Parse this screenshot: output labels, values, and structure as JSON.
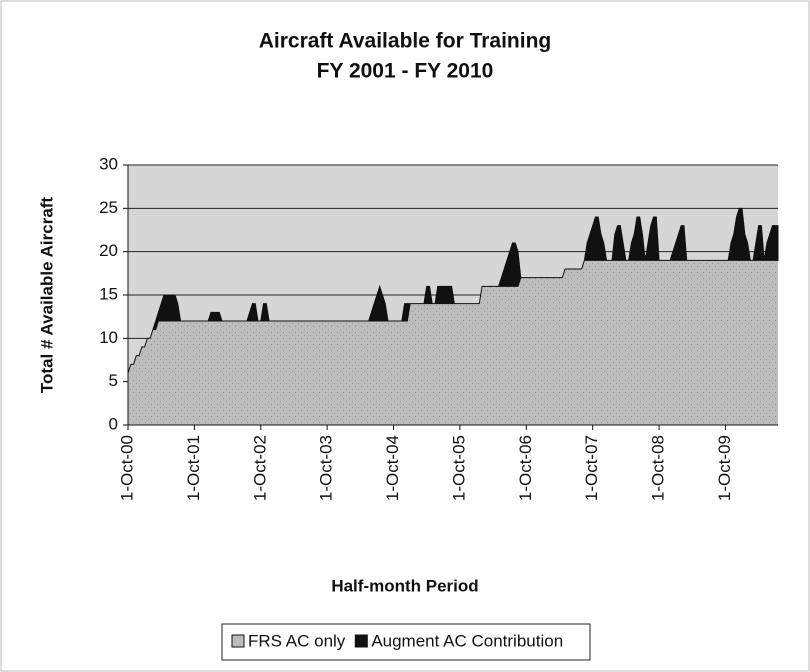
{
  "chart_data": {
    "type": "stacked_area",
    "title": "Aircraft Available for Training",
    "subtitle": "FY 2001 - FY 2010",
    "x_label": "Half-month Period",
    "y_label": "Total # Available Aircraft",
    "categories": [
      "1-Oct-00",
      null,
      null,
      null,
      null,
      null,
      null,
      null,
      null,
      null,
      null,
      null,
      null,
      null,
      null,
      null,
      null,
      null,
      null,
      null,
      null,
      null,
      null,
      null,
      "1-Oct-01",
      null,
      null,
      null,
      null,
      null,
      null,
      null,
      null,
      null,
      null,
      null,
      null,
      null,
      null,
      null,
      null,
      null,
      null,
      null,
      null,
      null,
      null,
      null,
      "1-Oct-02",
      null,
      null,
      null,
      null,
      null,
      null,
      null,
      null,
      null,
      null,
      null,
      null,
      null,
      null,
      null,
      null,
      null,
      null,
      null,
      null,
      null,
      null,
      null,
      "1-Oct-03",
      null,
      null,
      null,
      null,
      null,
      null,
      null,
      null,
      null,
      null,
      null,
      null,
      null,
      null,
      null,
      null,
      null,
      null,
      null,
      null,
      null,
      null,
      null,
      "1-Oct-04",
      null,
      null,
      null,
      null,
      null,
      null,
      null,
      null,
      null,
      null,
      null,
      null,
      null,
      null,
      null,
      null,
      null,
      null,
      null,
      null,
      null,
      null,
      null,
      "1-Oct-05",
      null,
      null,
      null,
      null,
      null,
      null,
      null,
      null,
      null,
      null,
      null,
      null,
      null,
      null,
      null,
      null,
      null,
      null,
      null,
      null,
      null,
      null,
      null,
      "1-Oct-06",
      null,
      null,
      null,
      null,
      null,
      null,
      null,
      null,
      null,
      null,
      null,
      null,
      null,
      null,
      null,
      null,
      null,
      null,
      null,
      null,
      null,
      null,
      null,
      "1-Oct-07",
      null,
      null,
      null,
      null,
      null,
      null,
      null,
      null,
      null,
      null,
      null,
      null,
      null,
      null,
      null,
      null,
      null,
      null,
      null,
      null,
      null,
      null,
      null,
      "1-Oct-08",
      null,
      null,
      null,
      null,
      null,
      null,
      null,
      null,
      null,
      null,
      null,
      null,
      null,
      null,
      null,
      null,
      null,
      null,
      null,
      null,
      null,
      null,
      null,
      "1-Oct-09",
      null,
      null,
      null,
      null,
      null,
      null,
      null,
      null,
      null,
      null,
      null,
      null,
      null,
      null,
      null,
      null,
      null,
      null,
      null
    ],
    "series": [
      {
        "name": "FRS AC only",
        "color": "#b8b8b8",
        "values": [
          6,
          7,
          7,
          8,
          8,
          9,
          9,
          10,
          10,
          11,
          11,
          12,
          12,
          12,
          12,
          12,
          12,
          12,
          12,
          12,
          12,
          12,
          12,
          12,
          12,
          12,
          12,
          12,
          12,
          12,
          12,
          12,
          12,
          12,
          12,
          12,
          12,
          12,
          12,
          12,
          12,
          12,
          12,
          12,
          12,
          12,
          12,
          12,
          12,
          12,
          12,
          12,
          12,
          12,
          12,
          12,
          12,
          12,
          12,
          12,
          12,
          12,
          12,
          12,
          12,
          12,
          12,
          12,
          12,
          12,
          12,
          12,
          12,
          12,
          12,
          12,
          12,
          12,
          12,
          12,
          12,
          12,
          12,
          12,
          12,
          12,
          12,
          12,
          12,
          12,
          12,
          12,
          12,
          12,
          12,
          12,
          12,
          12,
          12,
          12,
          12,
          12,
          14,
          14,
          14,
          14,
          14,
          14,
          14,
          14,
          14,
          14,
          14,
          14,
          14,
          14,
          14,
          14,
          14,
          14,
          14,
          14,
          14,
          14,
          14,
          14,
          14,
          14,
          16,
          16,
          16,
          16,
          16,
          16,
          16,
          16,
          16,
          16,
          16,
          16,
          16,
          16,
          17,
          17,
          17,
          17,
          17,
          17,
          17,
          17,
          17,
          17,
          17,
          17,
          17,
          17,
          17,
          17,
          18,
          18,
          18,
          18,
          18,
          18,
          18,
          19,
          19,
          19,
          19,
          19,
          19,
          19,
          19,
          19,
          19,
          19,
          19,
          19,
          19,
          19,
          19,
          19,
          19,
          19,
          19,
          19,
          19,
          19,
          19,
          19,
          19,
          19,
          19,
          19,
          19,
          19,
          19,
          19,
          19,
          19,
          19,
          19,
          19,
          19,
          19,
          19,
          19,
          19,
          19,
          19,
          19,
          19,
          19,
          19,
          19,
          19,
          19,
          19,
          19,
          19,
          19,
          19,
          19,
          19,
          19,
          19,
          19,
          19,
          19,
          19,
          19,
          19,
          19,
          19,
          19,
          19
        ]
      },
      {
        "name": "Augment AC Contribution",
        "color": "#111111",
        "values": [
          0,
          0,
          0,
          0,
          0,
          0,
          0,
          0,
          0,
          0,
          1,
          1,
          2,
          3,
          3,
          3,
          3,
          3,
          2,
          0,
          0,
          0,
          0,
          0,
          0,
          0,
          0,
          0,
          0,
          0,
          1,
          1,
          1,
          1,
          0,
          0,
          0,
          0,
          0,
          0,
          0,
          0,
          0,
          0,
          1,
          2,
          2,
          0,
          0,
          2,
          2,
          0,
          0,
          0,
          0,
          0,
          0,
          0,
          0,
          0,
          0,
          0,
          0,
          0,
          0,
          0,
          0,
          0,
          0,
          0,
          0,
          0,
          0,
          0,
          0,
          0,
          0,
          0,
          0,
          0,
          0,
          0,
          0,
          0,
          0,
          0,
          0,
          0,
          1,
          2,
          3,
          4,
          3,
          2,
          0,
          0,
          0,
          0,
          0,
          0,
          2,
          2,
          0,
          0,
          0,
          0,
          0,
          0,
          2,
          2,
          0,
          0,
          2,
          2,
          2,
          2,
          2,
          2,
          0,
          0,
          0,
          0,
          0,
          0,
          0,
          0,
          0,
          0,
          0,
          0,
          0,
          0,
          0,
          0,
          0,
          1,
          2,
          3,
          4,
          5,
          5,
          4,
          0,
          0,
          0,
          0,
          0,
          0,
          0,
          0,
          0,
          0,
          0,
          0,
          0,
          0,
          0,
          0,
          0,
          0,
          0,
          0,
          0,
          0,
          0,
          0,
          2,
          3,
          4,
          5,
          5,
          3,
          2,
          0,
          0,
          0,
          3,
          4,
          4,
          2,
          0,
          0,
          2,
          3,
          5,
          5,
          3,
          0,
          2,
          4,
          5,
          5,
          0,
          0,
          0,
          0,
          0,
          1,
          2,
          3,
          4,
          4,
          0,
          0,
          0,
          0,
          0,
          0,
          0,
          0,
          0,
          0,
          0,
          0,
          0,
          0,
          0,
          0,
          2,
          3,
          5,
          6,
          6,
          3,
          2,
          0,
          0,
          2,
          4,
          4,
          0,
          2,
          3,
          4,
          4,
          4
        ]
      }
    ],
    "ylim": [
      0,
      30
    ],
    "yticks": [
      0,
      5,
      10,
      15,
      20,
      25,
      30
    ],
    "grid": true
  }
}
